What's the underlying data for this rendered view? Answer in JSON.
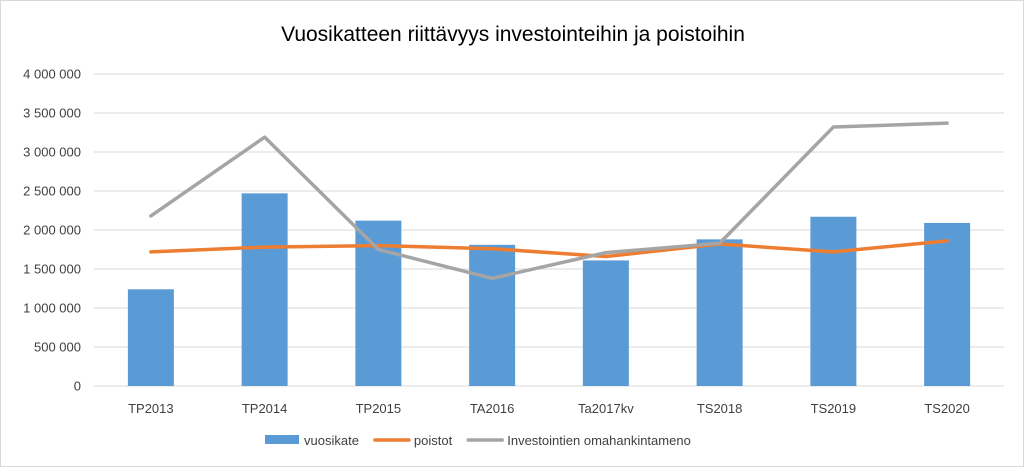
{
  "chart_data": {
    "type": "bar+line",
    "title": "Vuosikatteen riittävyys investointeihin ja poistoihin",
    "categories": [
      "TP2013",
      "TP2014",
      "TP2015",
      "TA2016",
      "Ta2017kv",
      "TS2018",
      "TS2019",
      "TS2020"
    ],
    "ylim": [
      0,
      4000000
    ],
    "yticks": [
      0,
      500000,
      1000000,
      1500000,
      2000000,
      2500000,
      3000000,
      3500000,
      4000000
    ],
    "ytick_labels": [
      "0",
      "500 000",
      "1 000 000",
      "1 500 000",
      "2 000 000",
      "2 500 000",
      "3 000 000",
      "3 500 000",
      "4 000 000"
    ],
    "grid": true,
    "legend_position": "bottom",
    "series": [
      {
        "name": "vuosikate",
        "kind": "bar",
        "color": "#5b9bd5",
        "values": [
          1240000,
          2470000,
          2120000,
          1810000,
          1610000,
          1880000,
          2170000,
          2090000
        ]
      },
      {
        "name": "poistot",
        "kind": "line",
        "color": "#ed7d31",
        "values": [
          1720000,
          1780000,
          1800000,
          1760000,
          1660000,
          1820000,
          1720000,
          1860000
        ]
      },
      {
        "name": "Investointien omahankintameno",
        "kind": "line",
        "color": "#a5a5a5",
        "values": [
          2180000,
          3190000,
          1750000,
          1380000,
          1710000,
          1830000,
          3320000,
          3370000
        ]
      }
    ]
  }
}
